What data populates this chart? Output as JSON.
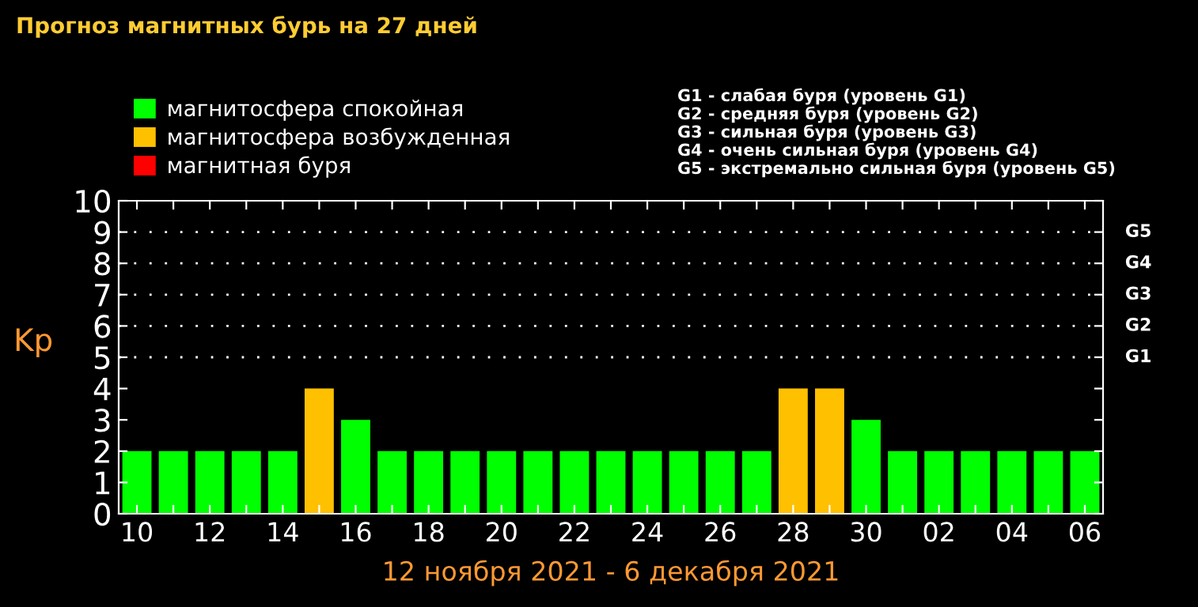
{
  "chart_data": {
    "type": "bar",
    "title": "Прогноз магнитных бурь на 27 дней",
    "xlabel": "12 ноября 2021 - 6 декабря 2021",
    "ylabel": "Kp",
    "categories": [
      "10",
      null,
      "12",
      null,
      "14",
      null,
      "16",
      null,
      "18",
      null,
      "20",
      null,
      "22",
      null,
      "24",
      null,
      "26",
      null,
      "28",
      null,
      "30",
      null,
      "02",
      null,
      "04",
      null,
      "06"
    ],
    "series": [
      {
        "name": "магнитосфера спокойная",
        "color": "#00ff00",
        "values": [
          2,
          2,
          2,
          2,
          2,
          null,
          3,
          2,
          2,
          2,
          2,
          2,
          2,
          2,
          2,
          2,
          2,
          2,
          null,
          null,
          3,
          2,
          2,
          2,
          2,
          2,
          2
        ]
      },
      {
        "name": "магнитосфера возбужденная",
        "color": "#ffc000",
        "values": [
          null,
          null,
          null,
          null,
          null,
          4,
          null,
          null,
          null,
          null,
          null,
          null,
          null,
          null,
          null,
          null,
          null,
          null,
          4,
          4,
          null,
          null,
          null,
          null,
          null,
          null,
          null
        ]
      },
      {
        "name": "магнитная буря",
        "color": "#ff0000",
        "values": [
          null,
          null,
          null,
          null,
          null,
          null,
          null,
          null,
          null,
          null,
          null,
          null,
          null,
          null,
          null,
          null,
          null,
          null,
          null,
          null,
          null,
          null,
          null,
          null,
          null,
          null,
          null
        ]
      }
    ],
    "ylim": [
      0,
      10
    ],
    "yticks": [
      0,
      1,
      2,
      3,
      4,
      5,
      6,
      7,
      8,
      9,
      10
    ],
    "ref_lines": [
      {
        "axis": "y",
        "value": 5,
        "label": "G1",
        "color": "#ffffff",
        "line_style": "dotted"
      },
      {
        "axis": "y",
        "value": 6,
        "label": "G2",
        "color": "#ffffff",
        "line_style": "dotted"
      },
      {
        "axis": "y",
        "value": 7,
        "label": "G3",
        "color": "#ffffff",
        "line_style": "dotted"
      },
      {
        "axis": "y",
        "value": 8,
        "label": "G4",
        "color": "#ffffff",
        "line_style": "dotted"
      },
      {
        "axis": "y",
        "value": 9,
        "label": "G5",
        "color": "#ffffff",
        "line_style": "dotted"
      }
    ],
    "annotations": [
      "G1 - слабая буря (уровень G1)",
      "G2 - средняя буря (уровень G2)",
      "G3 - сильная буря (уровень G3)",
      "G4 - очень сильная буря (уровень G4)",
      "G5 - экстремально сильная буря (уровень G5)"
    ],
    "legend": "top left",
    "grid": false
  }
}
